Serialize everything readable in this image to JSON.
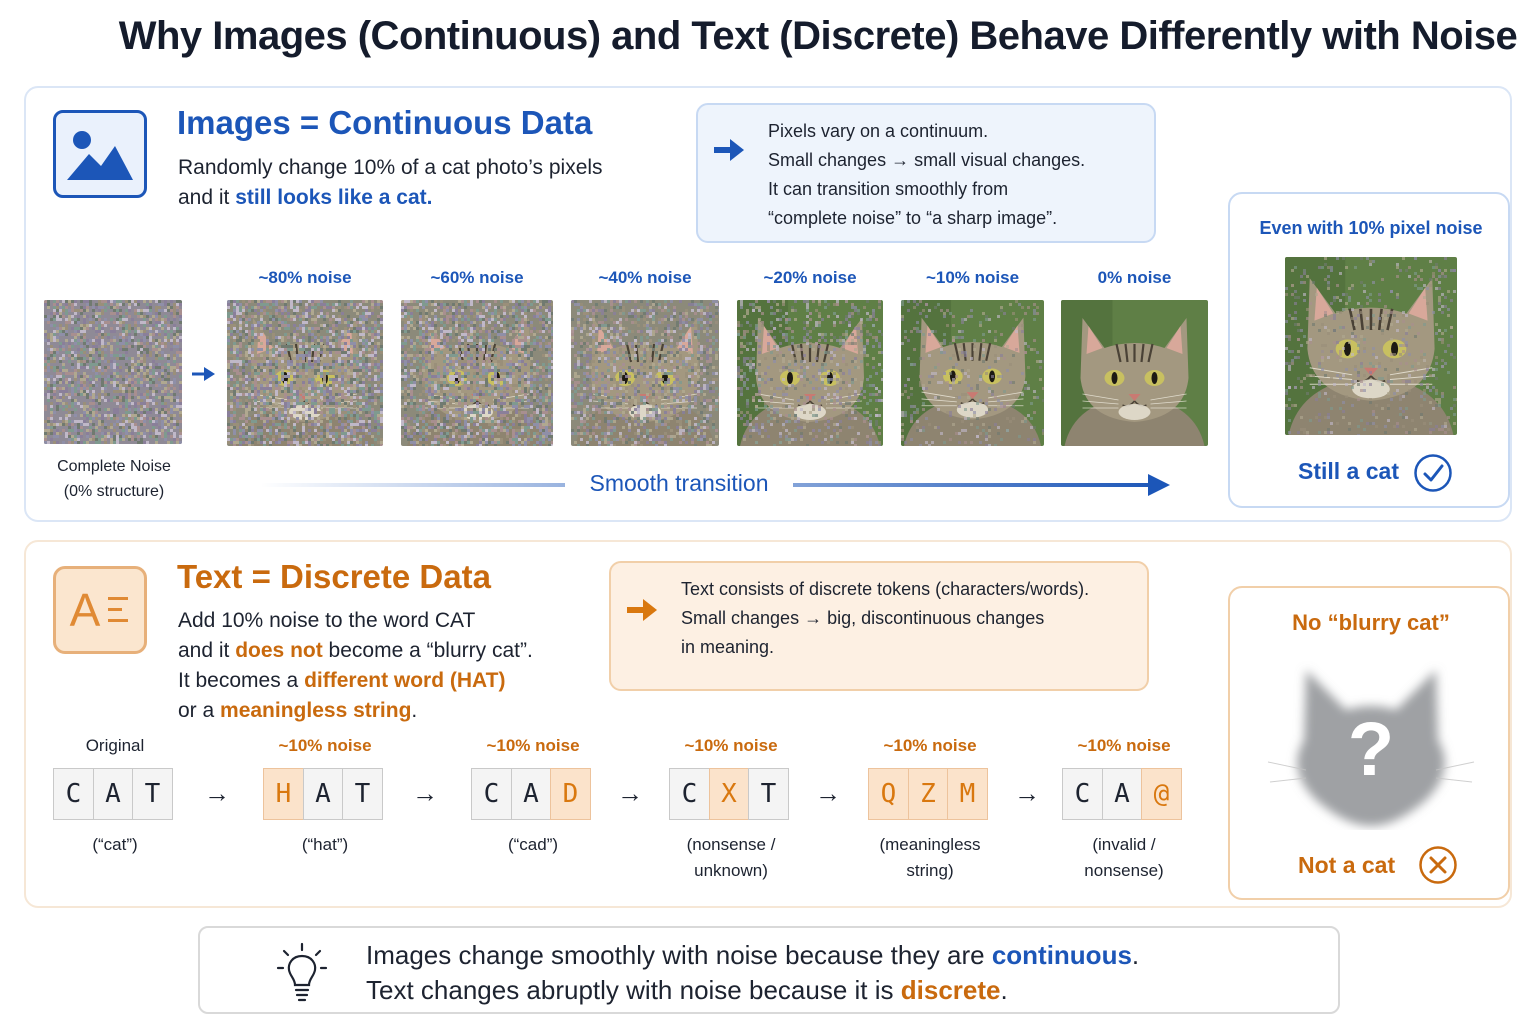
{
  "title": "Why Images (Continuous) and Text (Discrete) Behave Differently with Noise",
  "images_section": {
    "icon": "image-icon",
    "heading": "Images = Continuous Data",
    "line1": "Randomly change 10% of a cat photo’s pixels",
    "line2_pre": "and it ",
    "line2_hl": "still looks like a cat.",
    "info": [
      "Pixels vary on a continuum.",
      "Small changes → small visual changes.",
      "It can transition smoothly from",
      "“complete noise” to “a sharp image”."
    ],
    "noise_caption_1": "Complete Noise",
    "noise_caption_2": "(0% structure)",
    "stages": [
      "~80% noise",
      "~60% noise",
      "~40% noise",
      "~20% noise",
      "~10% noise",
      "0% noise"
    ],
    "stage_noise_fractions": [
      0.8,
      0.6,
      0.4,
      0.2,
      0.1,
      0.0
    ],
    "transition_label": "Smooth transition",
    "card_title": "Even with 10% pixel noise",
    "card_result": "Still a cat",
    "card_icon": "check-circle-icon"
  },
  "text_section": {
    "icon": "text-icon",
    "icon_text": "A",
    "heading": "Text = Discrete Data",
    "line1": "Add 10% noise to the word CAT",
    "line2_pre": "and it ",
    "line2_hl": "does not",
    "line2_post": " become a “blurry cat”.",
    "line3_pre": "It becomes a ",
    "line3_hl": "different word (HAT)",
    "line4_pre": "or a ",
    "line4_hl": "meaningless string",
    "line4_post": ".",
    "info": [
      "Text consists of discrete tokens (characters/words).",
      "Small changes → big, discontinuous changes",
      "in meaning."
    ],
    "examples": [
      {
        "label": "Original",
        "tokens": [
          "C",
          "A",
          "T"
        ],
        "changed": [
          false,
          false,
          false
        ],
        "caption": [
          "(“cat”)"
        ]
      },
      {
        "label": "~10% noise",
        "tokens": [
          "H",
          "A",
          "T"
        ],
        "changed": [
          true,
          false,
          false
        ],
        "caption": [
          "(“hat”)"
        ]
      },
      {
        "label": "~10% noise",
        "tokens": [
          "C",
          "A",
          "D"
        ],
        "changed": [
          false,
          false,
          true
        ],
        "caption": [
          "(“cad”)"
        ]
      },
      {
        "label": "~10% noise",
        "tokens": [
          "C",
          "X",
          "T"
        ],
        "changed": [
          false,
          true,
          false
        ],
        "caption": [
          "(nonsense /",
          "unknown)"
        ]
      },
      {
        "label": "~10% noise",
        "tokens": [
          "Q",
          "Z",
          "M"
        ],
        "changed": [
          true,
          true,
          true
        ],
        "caption": [
          "(meaningless",
          "string)"
        ]
      },
      {
        "label": "~10% noise",
        "tokens": [
          "C",
          "A",
          "@"
        ],
        "changed": [
          false,
          false,
          true
        ],
        "caption": [
          "(invalid /",
          "nonsense)"
        ]
      }
    ],
    "arrow_glyph": "→",
    "card_title": "No “blurry cat”",
    "card_glyph": "?",
    "card_result": "Not a cat",
    "card_icon": "x-circle-icon"
  },
  "takeaway": {
    "icon": "lightbulb-icon",
    "line1_pre": "Images change smoothly with noise because they are ",
    "line1_hl": "continuous",
    "line1_post": ".",
    "line2_pre": "Text changes abruptly with noise because it is ",
    "line2_hl": "discrete",
    "line2_post": "."
  },
  "colors": {
    "blue": "#1c56b8",
    "orange": "#c96a0e",
    "blue_panel_border": "#dbe6f6",
    "orange_panel_border": "#f6e7d6"
  }
}
